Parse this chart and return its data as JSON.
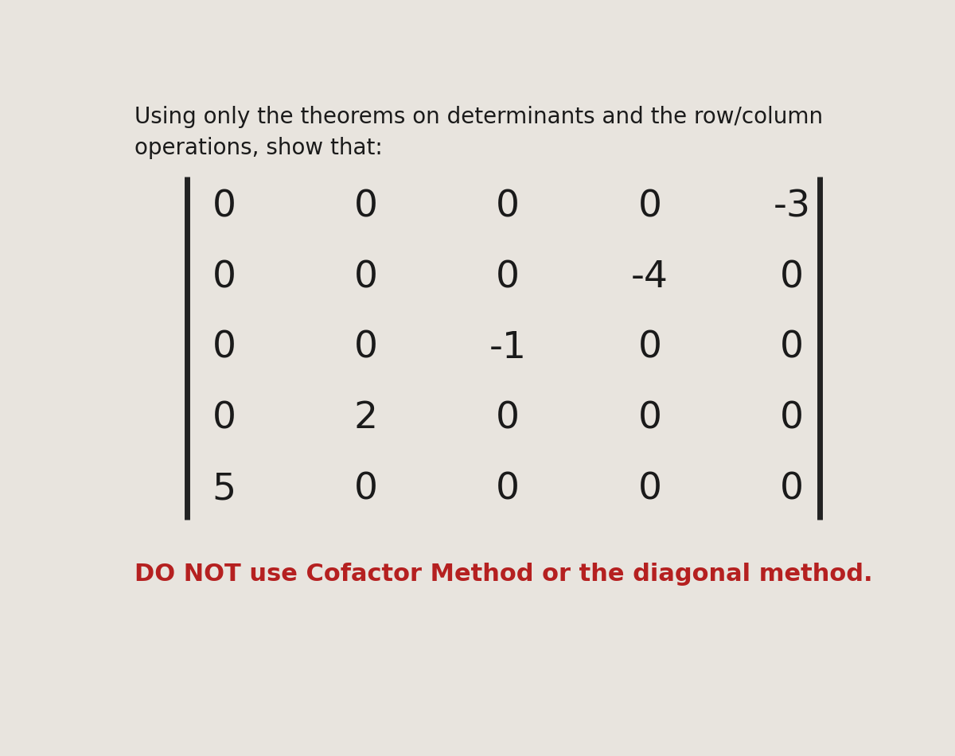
{
  "title_line1": "Using only the theorems on determinants and the row/column",
  "title_line2": "operations, show that:",
  "matrix": [
    [
      0,
      0,
      0,
      0,
      -3
    ],
    [
      0,
      0,
      0,
      -4,
      0
    ],
    [
      0,
      0,
      -1,
      0,
      0
    ],
    [
      0,
      2,
      0,
      0,
      0
    ],
    [
      5,
      0,
      0,
      0,
      0
    ]
  ],
  "footer": "DO NOT use Cofactor Method or the diagonal method.",
  "footer_color": "#b52020",
  "bg_color": "#e8e4de",
  "text_color": "#1a1a1a",
  "title_fontsize": 20,
  "matrix_fontsize": 34,
  "footer_fontsize": 22,
  "bracket_linewidth": 5.0,
  "bracket_color": "#222222"
}
